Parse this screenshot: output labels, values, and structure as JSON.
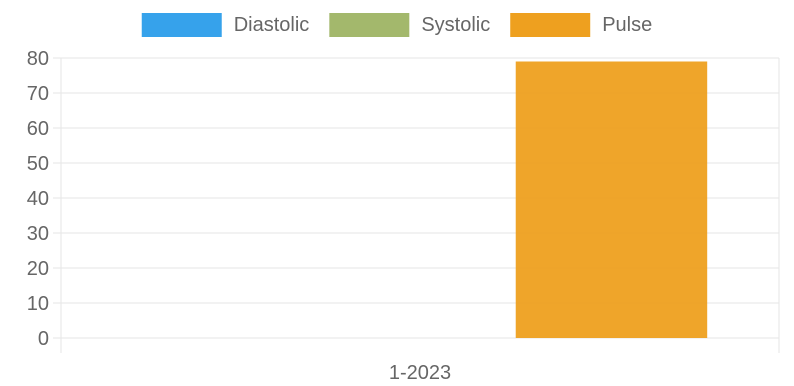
{
  "chart_data": {
    "type": "bar",
    "categories": [
      "1-2023"
    ],
    "series": [
      {
        "name": "Diastolic",
        "values": [
          0
        ],
        "color": "#36a2eb"
      },
      {
        "name": "Systolic",
        "values": [
          0
        ],
        "color": "#a3b86c"
      },
      {
        "name": "Pulse",
        "values": [
          79
        ],
        "color": "#eea01f"
      }
    ],
    "ylim": [
      0,
      80
    ],
    "yticks": [
      0,
      10,
      20,
      30,
      40,
      50,
      60,
      70,
      80
    ],
    "grid": true,
    "legend": "top-center"
  }
}
